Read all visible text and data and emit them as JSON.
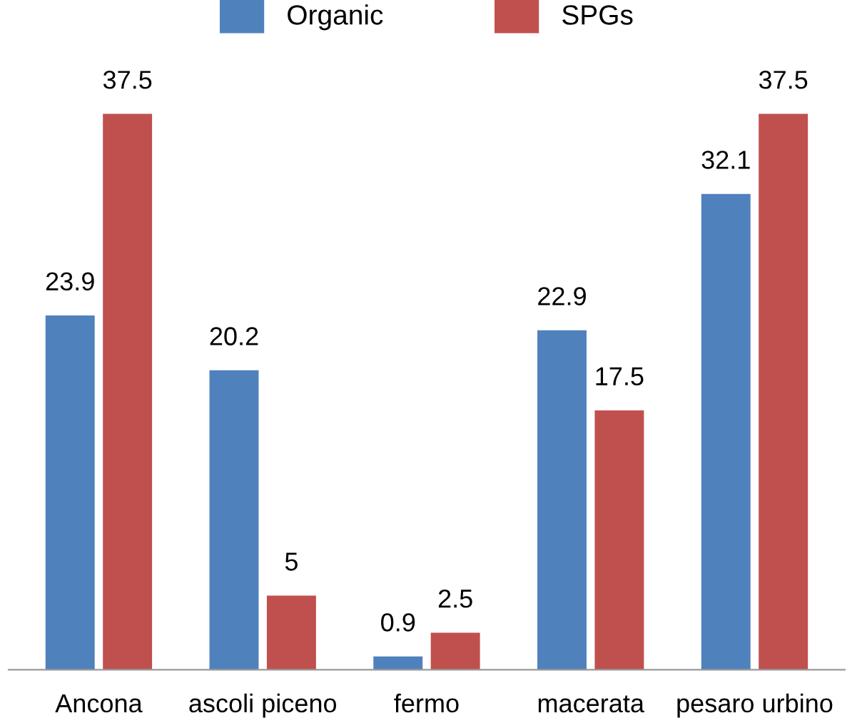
{
  "chart_data": {
    "type": "bar",
    "categories": [
      "Ancona",
      "ascoli piceno",
      "fermo",
      "macerata",
      "pesaro urbino"
    ],
    "series": [
      {
        "name": "Organic",
        "color": "#4f81bd",
        "values": [
          23.9,
          20.2,
          0.9,
          22.9,
          32.1
        ]
      },
      {
        "name": "SPGs",
        "color": "#c0504d",
        "values": [
          37.5,
          5,
          2.5,
          17.5,
          37.5
        ]
      }
    ],
    "data_labels": true,
    "legend": "top",
    "grid": false
  }
}
